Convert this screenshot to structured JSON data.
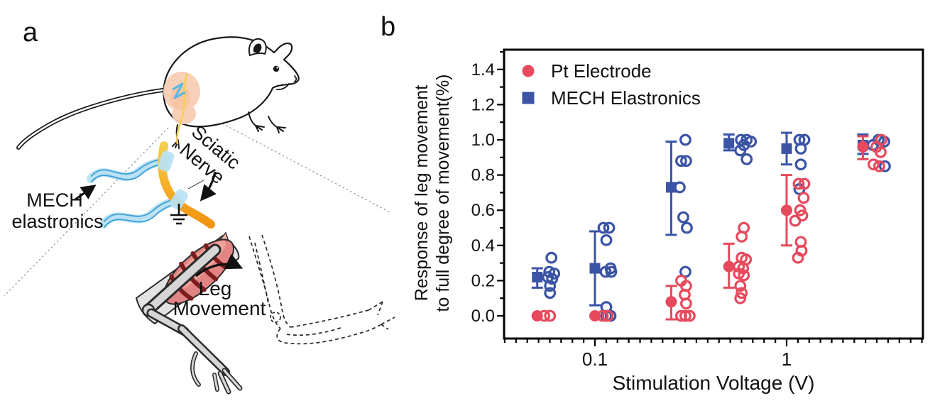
{
  "figure": {
    "background": "#ffffff"
  },
  "panel_a": {
    "label": "a",
    "annotations": {
      "mech_line1": "MECH",
      "mech_line2": "elastronics",
      "sciatic_line1": "Sciatic",
      "sciatic_line2": "Nerve",
      "leg_line1": "Leg",
      "leg_line2": "Movement"
    },
    "colors": {
      "elastronics_blue": "#b9e2f4",
      "elastronics_line_blue": "#3f9fd6",
      "nerve_yellow": "#f2d24d",
      "nerve_orange": "#f2930f",
      "muscle_red": "#e28484",
      "muscle_stripe": "#7c1d1d",
      "hip_pink": "#f8cdb4",
      "bone_gray": "#d6d6d6"
    }
  },
  "panel_b": {
    "label": "b"
  },
  "chart_data": {
    "type": "scatter",
    "x_scale": "log",
    "title": "",
    "xlabel": "Stimulation Voltage (V)",
    "ylabel_line1": "Response of leg movement",
    "ylabel_line2": "to full degree of movement(%)",
    "xlim": [
      0.034,
      5.2
    ],
    "ylim": [
      -0.13,
      1.51
    ],
    "x_major_ticks": [
      0.1,
      1
    ],
    "x_major_tick_labels": [
      "0.1",
      "1"
    ],
    "x_minor_divisions_per_decade": 17,
    "y_major_ticks": [
      0.0,
      0.2,
      0.4,
      0.6,
      0.8,
      1.0,
      1.2,
      1.4
    ],
    "y_tick_labels": [
      "0.0",
      "0.2",
      "0.4",
      "0.6",
      "0.8",
      "1.0",
      "1.2",
      "1.4"
    ],
    "y_minor_step": 0.1,
    "grid": false,
    "legend_position": "top-left-inside",
    "voltages": [
      0.05,
      0.1,
      0.25,
      0.5,
      1,
      2.5
    ],
    "series": [
      {
        "name": "Pt Electrode",
        "color": "#e64a5c",
        "marker": "circle",
        "mean": [
          0.0,
          0.0,
          0.08,
          0.28,
          0.6,
          0.96
        ],
        "err_lo": [
          0.0,
          0.0,
          -0.02,
          0.16,
          0.4,
          0.89
        ],
        "err_hi": [
          0.0,
          0.0,
          0.17,
          0.41,
          0.8,
          1.02
        ],
        "points": [
          [
            [
              0.0,
              10
            ],
            [
              0.0,
              18
            ]
          ],
          [
            [
              0.0,
              11
            ],
            [
              0.0,
              18
            ]
          ],
          [
            [
              0.2,
              14
            ],
            [
              0.17,
              21
            ],
            [
              0.12,
              19
            ],
            [
              0.07,
              21
            ],
            [
              0.0,
              14
            ],
            [
              0.0,
              20
            ],
            [
              0.0,
              26
            ]
          ],
          [
            [
              0.5,
              21
            ],
            [
              0.45,
              18
            ],
            [
              0.33,
              18
            ],
            [
              0.32,
              24
            ],
            [
              0.28,
              14
            ],
            [
              0.27,
              20
            ],
            [
              0.24,
              14
            ],
            [
              0.23,
              21
            ],
            [
              0.17,
              16
            ],
            [
              0.13,
              18
            ],
            [
              0.1,
              16
            ]
          ],
          [
            [
              0.75,
              17
            ],
            [
              0.75,
              25
            ],
            [
              0.67,
              24
            ],
            [
              0.6,
              19
            ],
            [
              0.57,
              22
            ],
            [
              0.54,
              12
            ],
            [
              0.42,
              20
            ],
            [
              0.37,
              21
            ],
            [
              0.33,
              16
            ]
          ],
          [
            [
              1.0,
              26
            ],
            [
              0.96,
              19
            ],
            [
              0.93,
              25
            ],
            [
              0.86,
              15
            ],
            [
              0.85,
              23
            ]
          ]
        ]
      },
      {
        "name": "MECH Elastronics",
        "color": "#3b54a5",
        "marker": "square",
        "mean": [
          0.22,
          0.27,
          0.73,
          0.98,
          0.95,
          0.97
        ],
        "err_lo": [
          0.16,
          0.06,
          0.46,
          0.94,
          0.86,
          0.92
        ],
        "err_hi": [
          0.27,
          0.48,
          0.99,
          1.03,
          1.04,
          1.03
        ],
        "points": [
          [
            [
              0.33,
              20
            ],
            [
              0.25,
              17
            ],
            [
              0.24,
              24
            ],
            [
              0.22,
              15
            ],
            [
              0.21,
              21
            ],
            [
              0.17,
              18
            ],
            [
              0.13,
              18
            ]
          ],
          [
            [
              0.5,
              12
            ],
            [
              0.5,
              20
            ],
            [
              0.43,
              16
            ],
            [
              0.27,
              22
            ],
            [
              0.25,
              15
            ],
            [
              0.25,
              23
            ],
            [
              0.05,
              16
            ],
            [
              0.0,
              16
            ],
            [
              0.0,
              22
            ]
          ],
          [
            [
              1.0,
              20
            ],
            [
              0.88,
              14
            ],
            [
              0.88,
              21
            ],
            [
              0.73,
              12
            ],
            [
              0.56,
              17
            ],
            [
              0.5,
              22
            ],
            [
              0.25,
              20
            ]
          ],
          [
            [
              1.0,
              17
            ],
            [
              1.0,
              25
            ],
            [
              0.99,
              31
            ],
            [
              0.97,
              21
            ],
            [
              0.94,
              16
            ],
            [
              0.89,
              25
            ]
          ],
          [
            [
              1.0,
              18
            ],
            [
              1.0,
              25
            ],
            [
              0.95,
              20
            ],
            [
              0.86,
              20
            ],
            [
              0.72,
              18
            ]
          ],
          [
            [
              1.0,
              22
            ],
            [
              0.99,
              30
            ],
            [
              0.97,
              14
            ],
            [
              0.85,
              31
            ]
          ]
        ]
      }
    ]
  }
}
